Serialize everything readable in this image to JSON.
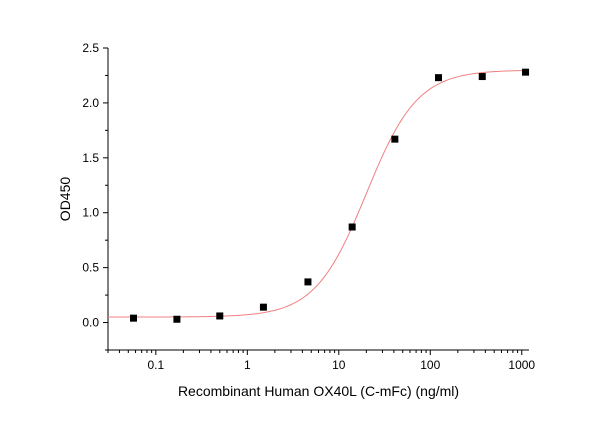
{
  "chart_data": {
    "type": "scatter",
    "title": "",
    "xlabel": "Recombinant Human OX40L (C-mFc) (ng/ml)",
    "ylabel": "OD450",
    "x_scale": "log",
    "xlim": [
      0.03,
      1200
    ],
    "ylim": [
      -0.25,
      2.5
    ],
    "x_ticks": [
      0.1,
      1,
      10,
      100,
      1000
    ],
    "x_tick_labels": [
      "0.1",
      "1",
      "10",
      "100",
      "1000"
    ],
    "y_ticks": [
      0.0,
      0.5,
      1.0,
      1.5,
      2.0,
      2.5
    ],
    "y_tick_labels": [
      "0.0",
      "0.5",
      "1.0",
      "1.5",
      "2.0",
      "2.5"
    ],
    "grid": false,
    "legend": "none",
    "series": [
      {
        "kind": "points",
        "marker": "square",
        "color": "#000000",
        "x": [
          0.057,
          0.17,
          0.5,
          1.5,
          4.6,
          14,
          41,
          123,
          370,
          1100
        ],
        "y": [
          0.04,
          0.03,
          0.06,
          0.14,
          0.37,
          0.87,
          1.67,
          2.23,
          2.24,
          2.28
        ]
      },
      {
        "kind": "fit",
        "color": "#f08080",
        "model": "4PL",
        "bottom": 0.05,
        "top": 2.3,
        "ec50": 20,
        "hill": 1.55
      }
    ]
  }
}
